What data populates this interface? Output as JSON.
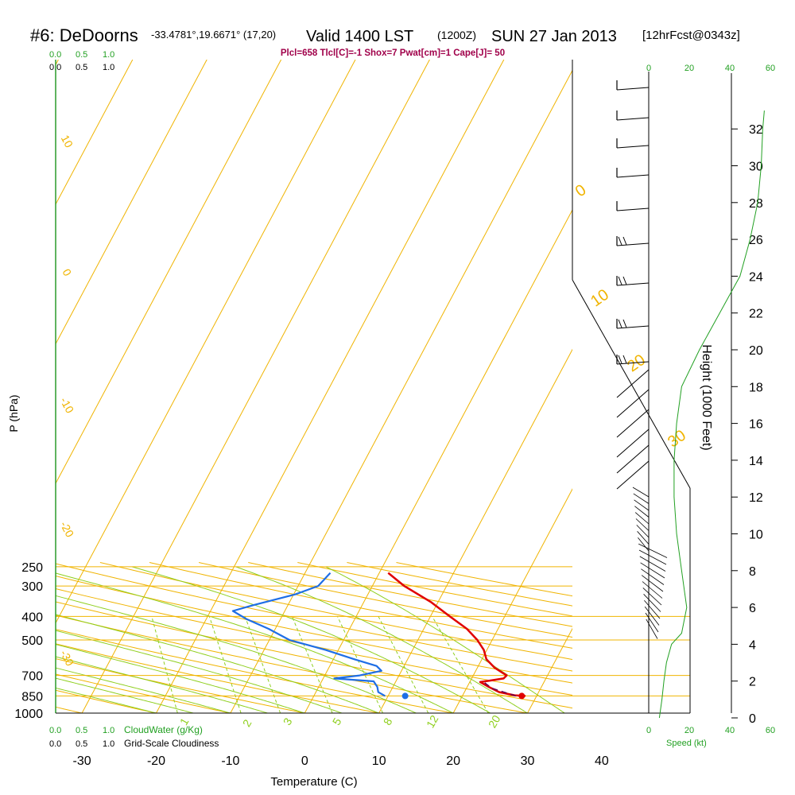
{
  "header": {
    "station": "#6: DeDoorns",
    "coords": "-33.4781°,19.6671° (17,20)",
    "valid": "Valid 1400 LST",
    "utc": "(1200Z)",
    "date": "SUN 27 Jan 2013",
    "fcst": "[12hrFcst@0343z]",
    "params": "Plcl=658 Tlcl[C]=-1 Shox=7 Pwat[cm]=1 Cape[J]= 50"
  },
  "cloud_scale": {
    "top_green": [
      "0.0",
      "0.5",
      "1.0"
    ],
    "top_black": [
      "0.0",
      "0.5",
      "1.0"
    ],
    "bottom_green": [
      "0.0",
      "0.5",
      "1.0"
    ],
    "bottom_black": [
      "0.0",
      "0.5",
      "1.0"
    ],
    "cloudwater_label": "CloudWater (g/Kg)",
    "cloudiness_label": "Grid-Scale Cloudiness"
  },
  "speed_scale": {
    "top": [
      "0",
      "20",
      "40",
      "60"
    ],
    "bottom": [
      "0",
      "20",
      "40",
      "60"
    ],
    "label": "Speed (kt)"
  },
  "colors": {
    "isotherm": "#f0b400",
    "dry_adiabat": "#f0b400",
    "moist_adiabat": "#8fcf1e",
    "mixing_ratio": "#8fcf1e",
    "temperature": "#e00000",
    "dewpoint": "#1e6ee6",
    "parcel": "#6a0050",
    "speed": "#22a022",
    "params_text": "#a0004a"
  },
  "chart_data": {
    "type": "line",
    "title": "#6: DeDoorns Valid 1400 LST SUN 27 Jan 2013",
    "xlabel": "Temperature (C)",
    "ylabel": "P (hPa)",
    "y2label": "Height (1000 Feet)",
    "x_ticks": [
      "-30",
      "-20",
      "-10",
      "0",
      "10",
      "20",
      "30",
      "40"
    ],
    "y_ticks": [
      "250",
      "300",
      "400",
      "500",
      "700",
      "850",
      "1000"
    ],
    "height_ticks": [
      "0",
      "2",
      "4",
      "6",
      "8",
      "10",
      "12",
      "14",
      "16",
      "18",
      "20",
      "22",
      "24",
      "26",
      "28",
      "30",
      "32"
    ],
    "isotherm_labels": [
      "10",
      "0",
      "-10",
      "-20",
      "-30"
    ],
    "dry_adiabat_labels": [
      "0",
      "10",
      "20",
      "30"
    ],
    "mixing_ratio_labels": [
      "1",
      "2",
      "3",
      "5",
      "8",
      "12",
      "20"
    ],
    "series": [
      {
        "name": "temperature",
        "points": [
          [
            1.2,
            265
          ],
          [
            4.3,
            300
          ],
          [
            9.1,
            350
          ],
          [
            12.6,
            400
          ],
          [
            15.8,
            450
          ],
          [
            18.0,
            500
          ],
          [
            19.6,
            550
          ],
          [
            20.6,
            600
          ],
          [
            22.3,
            650
          ],
          [
            24.5,
            700
          ],
          [
            24.3,
            720
          ],
          [
            22.6,
            735
          ],
          [
            21.4,
            745
          ],
          [
            22.9,
            780
          ],
          [
            24.7,
            820
          ],
          [
            27.0,
            845
          ],
          [
            28.5,
            850
          ]
        ]
      },
      {
        "name": "dewpoint",
        "points": [
          [
            -6.6,
            265
          ],
          [
            -7.3,
            300
          ],
          [
            -9.8,
            325
          ],
          [
            -14.7,
            360
          ],
          [
            -17.0,
            380
          ],
          [
            -14.6,
            410
          ],
          [
            -10.9,
            450
          ],
          [
            -7.3,
            500
          ],
          [
            -1.7,
            550
          ],
          [
            2.8,
            600
          ],
          [
            6.3,
            640
          ],
          [
            7.3,
            670
          ],
          [
            4.7,
            700
          ],
          [
            1.5,
            720
          ],
          [
            7.0,
            740
          ],
          [
            7.9,
            780
          ],
          [
            8.4,
            820
          ],
          [
            9.6,
            850
          ]
        ]
      },
      {
        "name": "parcel",
        "points": [
          [
            27.2,
            850
          ],
          [
            23.4,
            790
          ],
          [
            21.7,
            740
          ]
        ]
      }
    ],
    "surface_points": [
      {
        "name": "surface temperature",
        "x": 28.0,
        "p": 850
      },
      {
        "name": "surface dewpoint",
        "x": 12.3,
        "p": 850
      }
    ],
    "wind_speed_kt": [
      [
        0,
        2.1
      ],
      [
        1,
        2.6
      ],
      [
        2,
        3.0
      ],
      [
        3,
        3.5
      ],
      [
        4,
        4.5
      ],
      [
        4.6,
        6.5
      ],
      [
        6,
        7.5
      ],
      [
        8,
        6.5
      ],
      [
        10,
        5.5
      ],
      [
        12,
        5.0
      ],
      [
        14,
        5.0
      ],
      [
        16,
        5.5
      ],
      [
        18,
        6.5
      ],
      [
        20,
        10.0
      ],
      [
        22,
        14.0
      ],
      [
        24,
        18.0
      ],
      [
        26,
        20.0
      ],
      [
        28,
        21.5
      ],
      [
        30,
        22.2
      ],
      [
        32,
        22.5
      ],
      [
        33,
        22.8
      ]
    ]
  }
}
